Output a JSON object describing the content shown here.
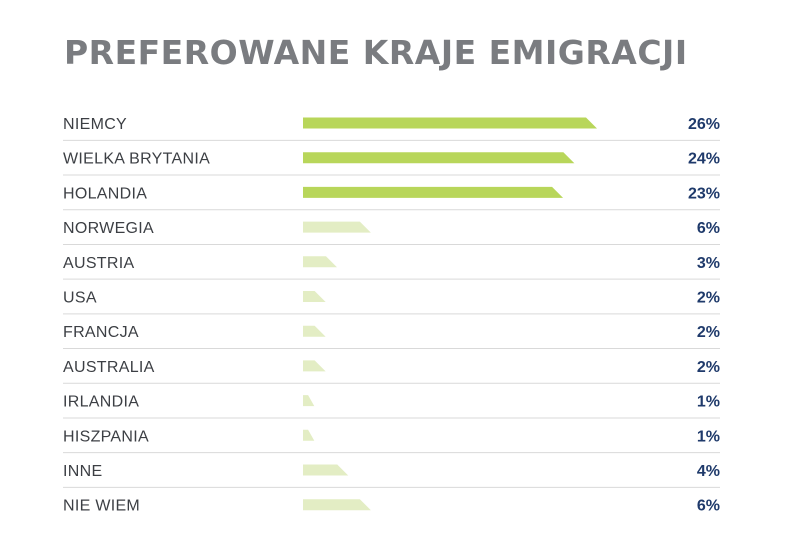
{
  "chart_data": {
    "type": "bar",
    "title": "PREFEROWANE KRAJE EMIGRACJI",
    "orientation": "horizontal",
    "categories": [
      "NIEMCY",
      "WIELKA BRYTANIA",
      "HOLANDIA",
      "NORWEGIA",
      "AUSTRIA",
      "USA",
      "FRANCJA",
      "AUSTRALIA",
      "IRLANDIA",
      "HISZPANIA",
      "INNE",
      "NIE WIEM"
    ],
    "values": [
      26,
      24,
      23,
      6,
      3,
      2,
      2,
      2,
      1,
      1,
      4,
      6
    ],
    "value_labels": [
      "26%",
      "24%",
      "23%",
      "6%",
      "3%",
      "2%",
      "2%",
      "2%",
      "1%",
      "1%",
      "4%",
      "6%"
    ],
    "unit": "%",
    "xlim": [
      0,
      26
    ],
    "colors": {
      "highlight": "#b8d65a",
      "muted": "#e3edc4",
      "title": "#7a7c80",
      "value": "#1f3a6b",
      "divider": "#d9d9d9"
    },
    "highlighted_count": 3,
    "grid": false,
    "legend": "none"
  }
}
